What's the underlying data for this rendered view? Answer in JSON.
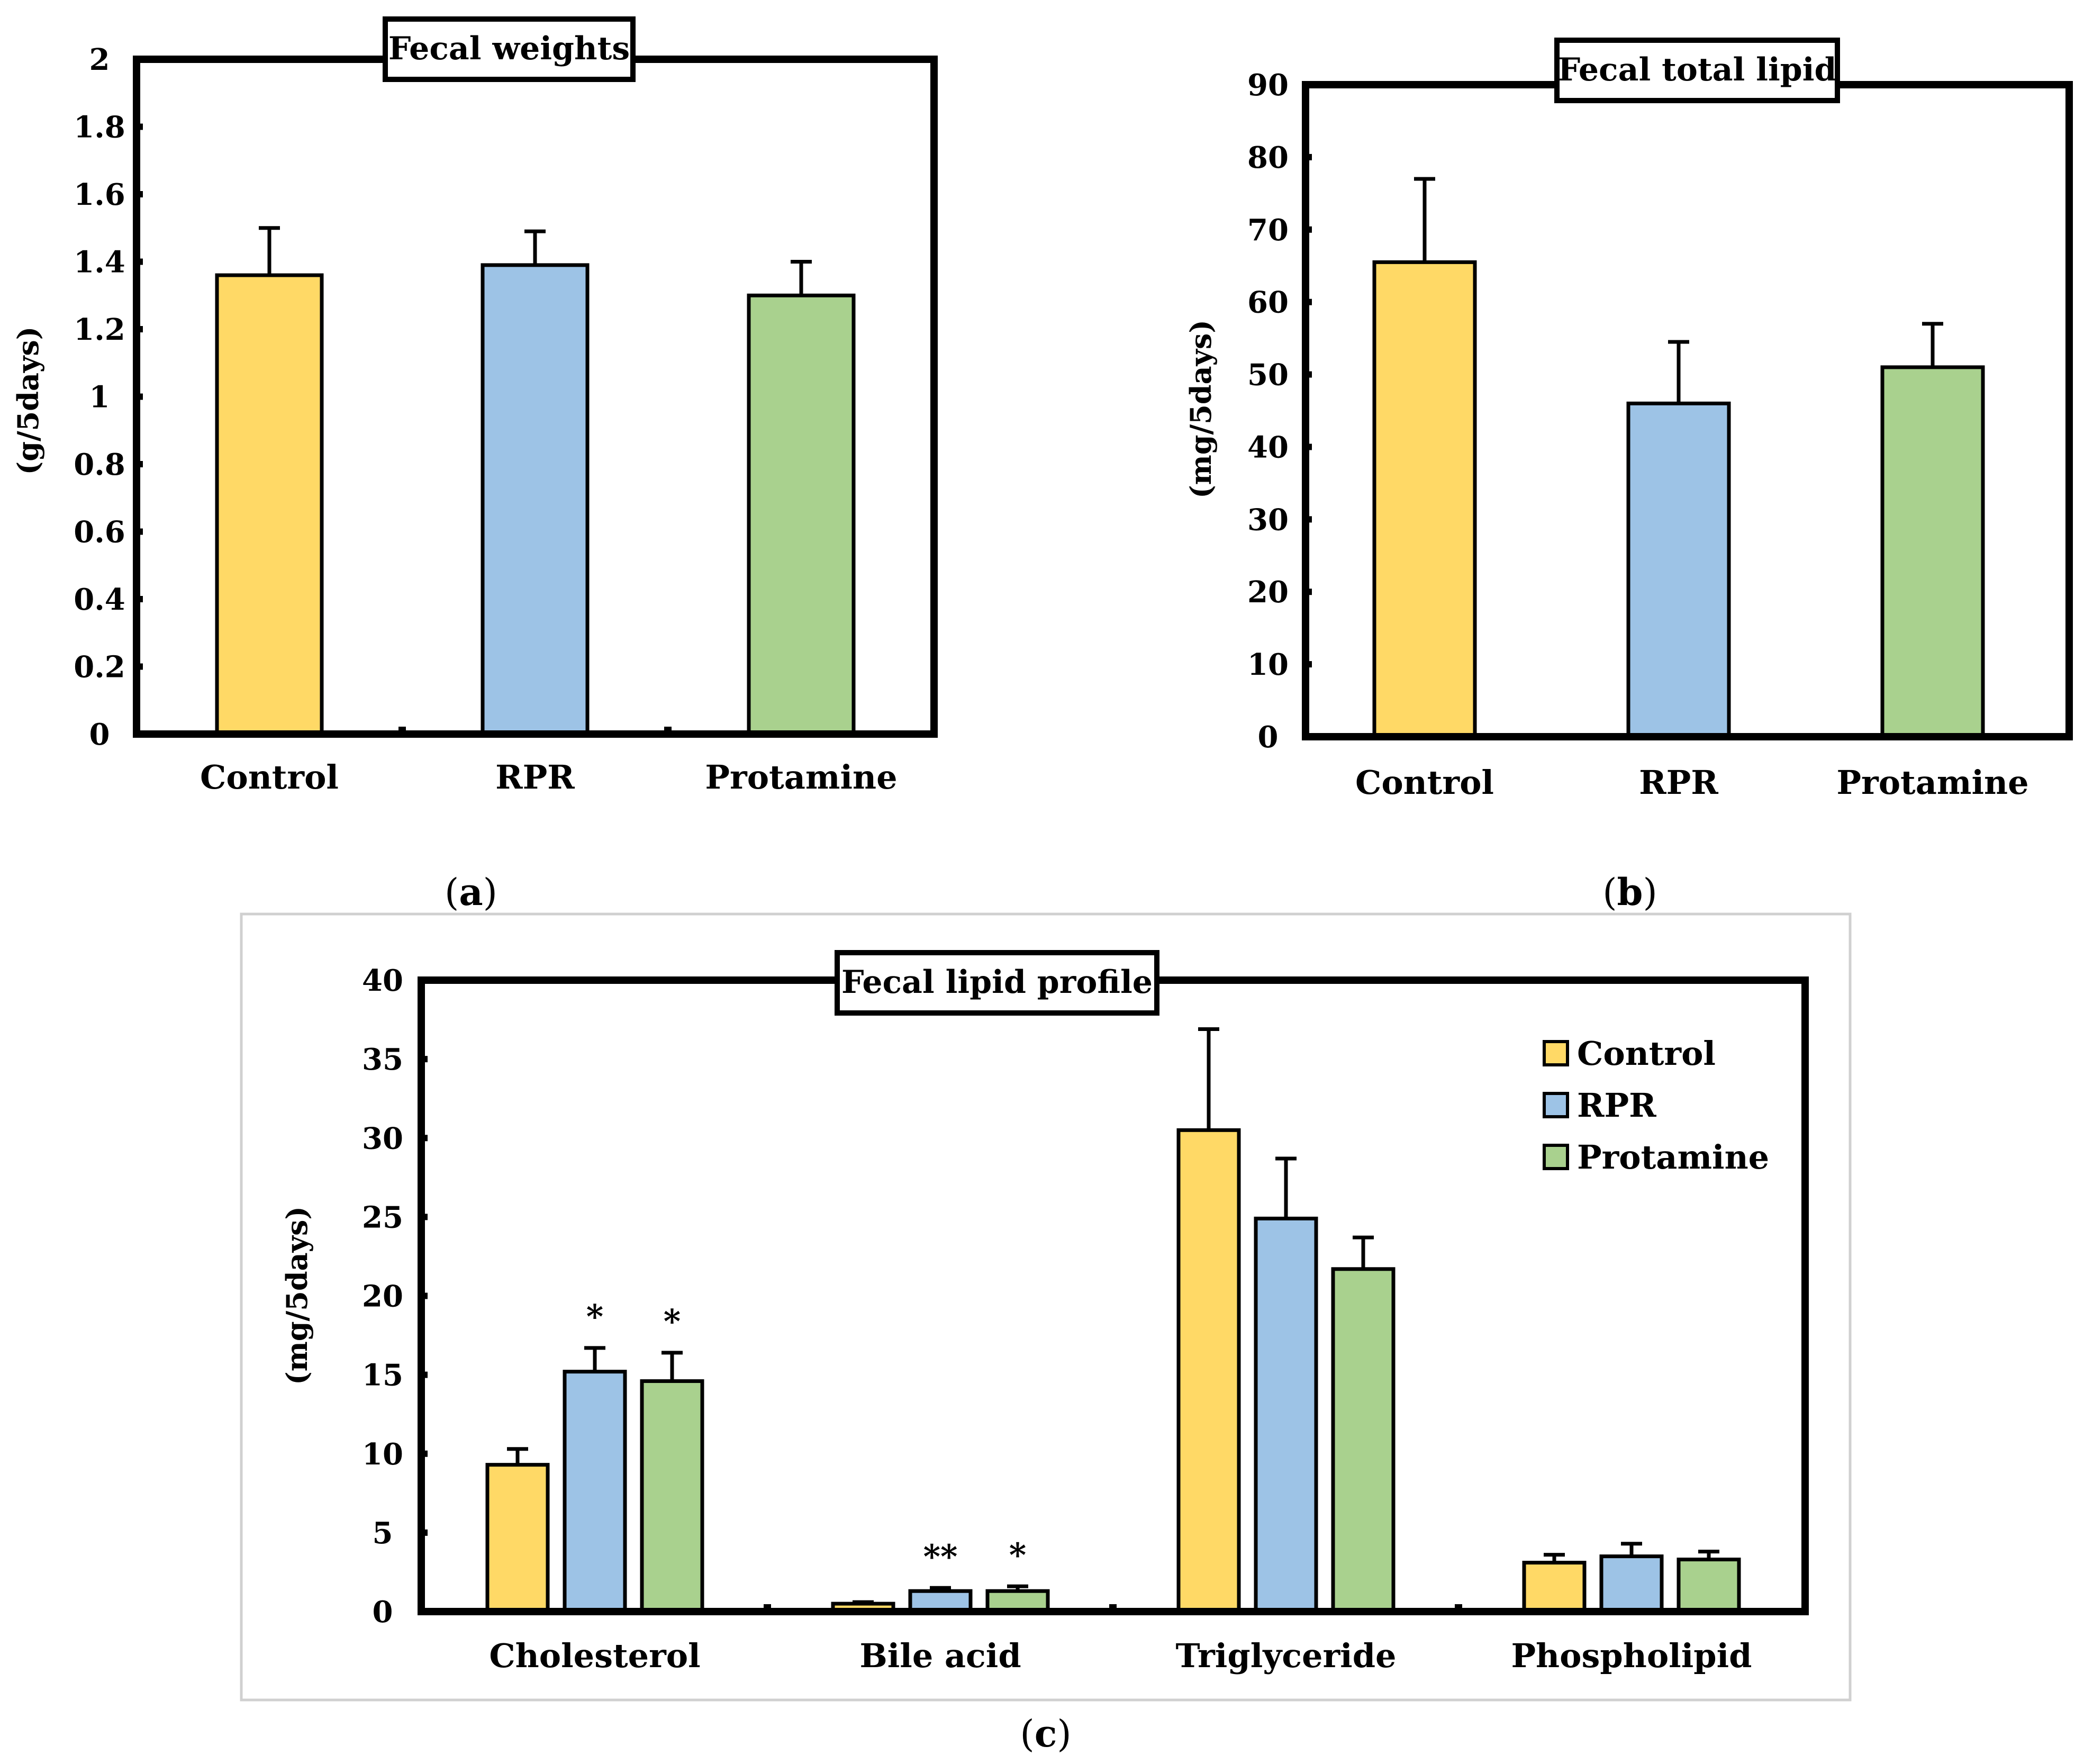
{
  "colors": {
    "Control": "#FFD966",
    "RPR": "#9DC3E6",
    "Protamine": "#A9D18E",
    "axis": "#000000",
    "frame": "#D0D0D0"
  },
  "chart_data": [
    {
      "type": "bar",
      "panel_label": "a",
      "title": "Fecal weights",
      "ylabel": "(g/5days)",
      "xlabel": "",
      "categories": [
        "Control",
        "RPR",
        "Protamine"
      ],
      "values": [
        1.36,
        1.39,
        1.3
      ],
      "errors": [
        0.14,
        0.1,
        0.1
      ],
      "ylim": [
        0,
        2
      ],
      "yticks": [
        "0",
        "0.2",
        "0.4",
        "0.6",
        "0.8",
        "1",
        "1.2",
        "1.4",
        "1.6",
        "1.8",
        "2"
      ]
    },
    {
      "type": "bar",
      "panel_label": "b",
      "title": "Fecal total lipid",
      "ylabel": "(mg/5days)",
      "xlabel": "",
      "categories": [
        "Control",
        "RPR",
        "Protamine"
      ],
      "values": [
        65.5,
        46.0,
        51.0
      ],
      "errors": [
        11.5,
        8.5,
        6.0
      ],
      "ylim": [
        0,
        90
      ],
      "yticks": [
        "0",
        "10",
        "20",
        "30",
        "40",
        "50",
        "60",
        "70",
        "80",
        "90"
      ]
    },
    {
      "type": "bar",
      "panel_label": "c",
      "title": "Fecal lipid profile",
      "ylabel": "(mg/5days)",
      "xlabel": "",
      "categories": [
        "Cholesterol",
        "Bile acid",
        "Triglyceride",
        "Phospholipid"
      ],
      "series": [
        {
          "name": "Control",
          "values": [
            9.3,
            0.5,
            30.5,
            3.1
          ],
          "errors": [
            1.0,
            0.1,
            6.4,
            0.5
          ]
        },
        {
          "name": "RPR",
          "values": [
            15.2,
            1.3,
            24.9,
            3.5
          ],
          "errors": [
            1.5,
            0.2,
            3.8,
            0.8
          ]
        },
        {
          "name": "Protamine",
          "values": [
            14.6,
            1.3,
            21.7,
            3.3
          ],
          "errors": [
            1.8,
            0.3,
            2.0,
            0.5
          ]
        }
      ],
      "significance": [
        {
          "category": "Cholesterol",
          "series": "RPR",
          "label": "*"
        },
        {
          "category": "Cholesterol",
          "series": "Protamine",
          "label": "*"
        },
        {
          "category": "Bile acid",
          "series": "RPR",
          "label": "**"
        },
        {
          "category": "Bile acid",
          "series": "Protamine",
          "label": "*"
        }
      ],
      "legend": [
        "Control",
        "RPR",
        "Protamine"
      ],
      "legend_position": "top-right",
      "ylim": [
        0,
        40
      ],
      "yticks": [
        "0",
        "5",
        "10",
        "15",
        "20",
        "25",
        "30",
        "35",
        "40"
      ]
    }
  ]
}
